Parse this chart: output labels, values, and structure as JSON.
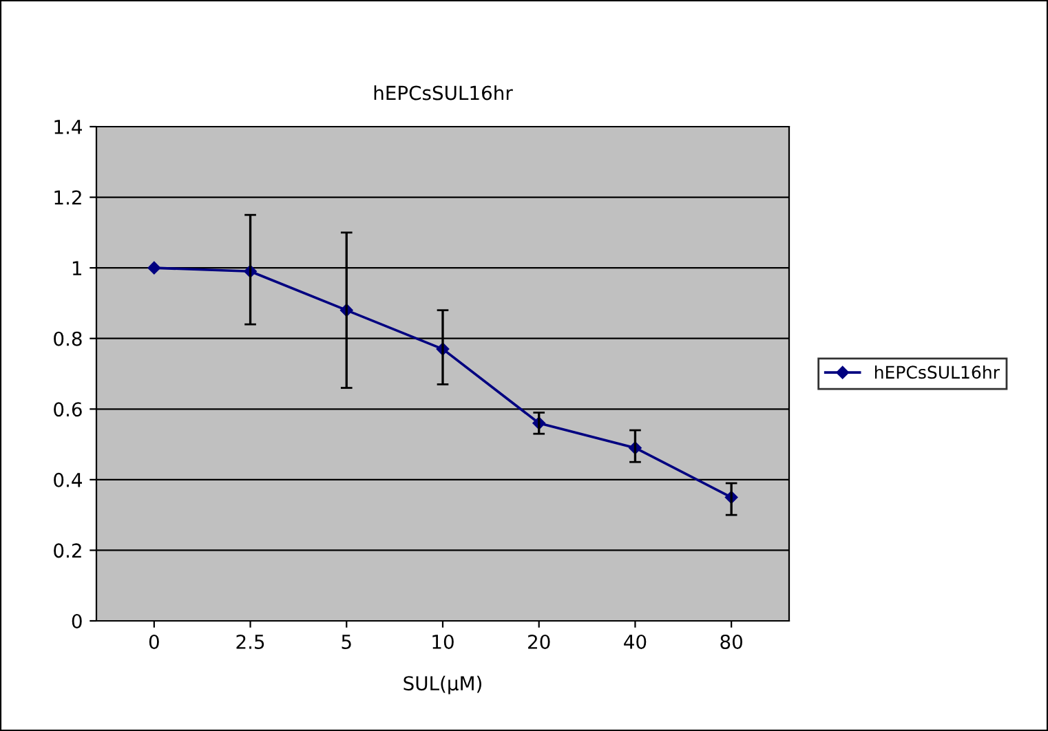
{
  "chart_data": {
    "type": "line",
    "title": "hEPCsSUL16hr",
    "xlabel": "SUL(μM)",
    "categories": [
      "0",
      "2.5",
      "5",
      "10",
      "20",
      "40",
      "80"
    ],
    "series": [
      {
        "name": "hEPCsSUL16hr",
        "color": "#000080",
        "values": [
          1.0,
          0.99,
          0.88,
          0.77,
          0.56,
          0.49,
          0.35
        ],
        "errors": [
          null,
          [
            0.84,
            1.15
          ],
          [
            0.66,
            1.1
          ],
          [
            0.67,
            0.88
          ],
          [
            0.53,
            0.59
          ],
          [
            0.45,
            0.54
          ],
          [
            0.3,
            0.39
          ]
        ]
      }
    ],
    "ylim": [
      0,
      1.4
    ],
    "yticks": [
      0,
      0.2,
      0.4,
      0.6,
      0.8,
      1,
      1.2,
      1.4
    ],
    "grid": "y",
    "legend": "right",
    "marker": "diamond",
    "line_style": "solid"
  }
}
